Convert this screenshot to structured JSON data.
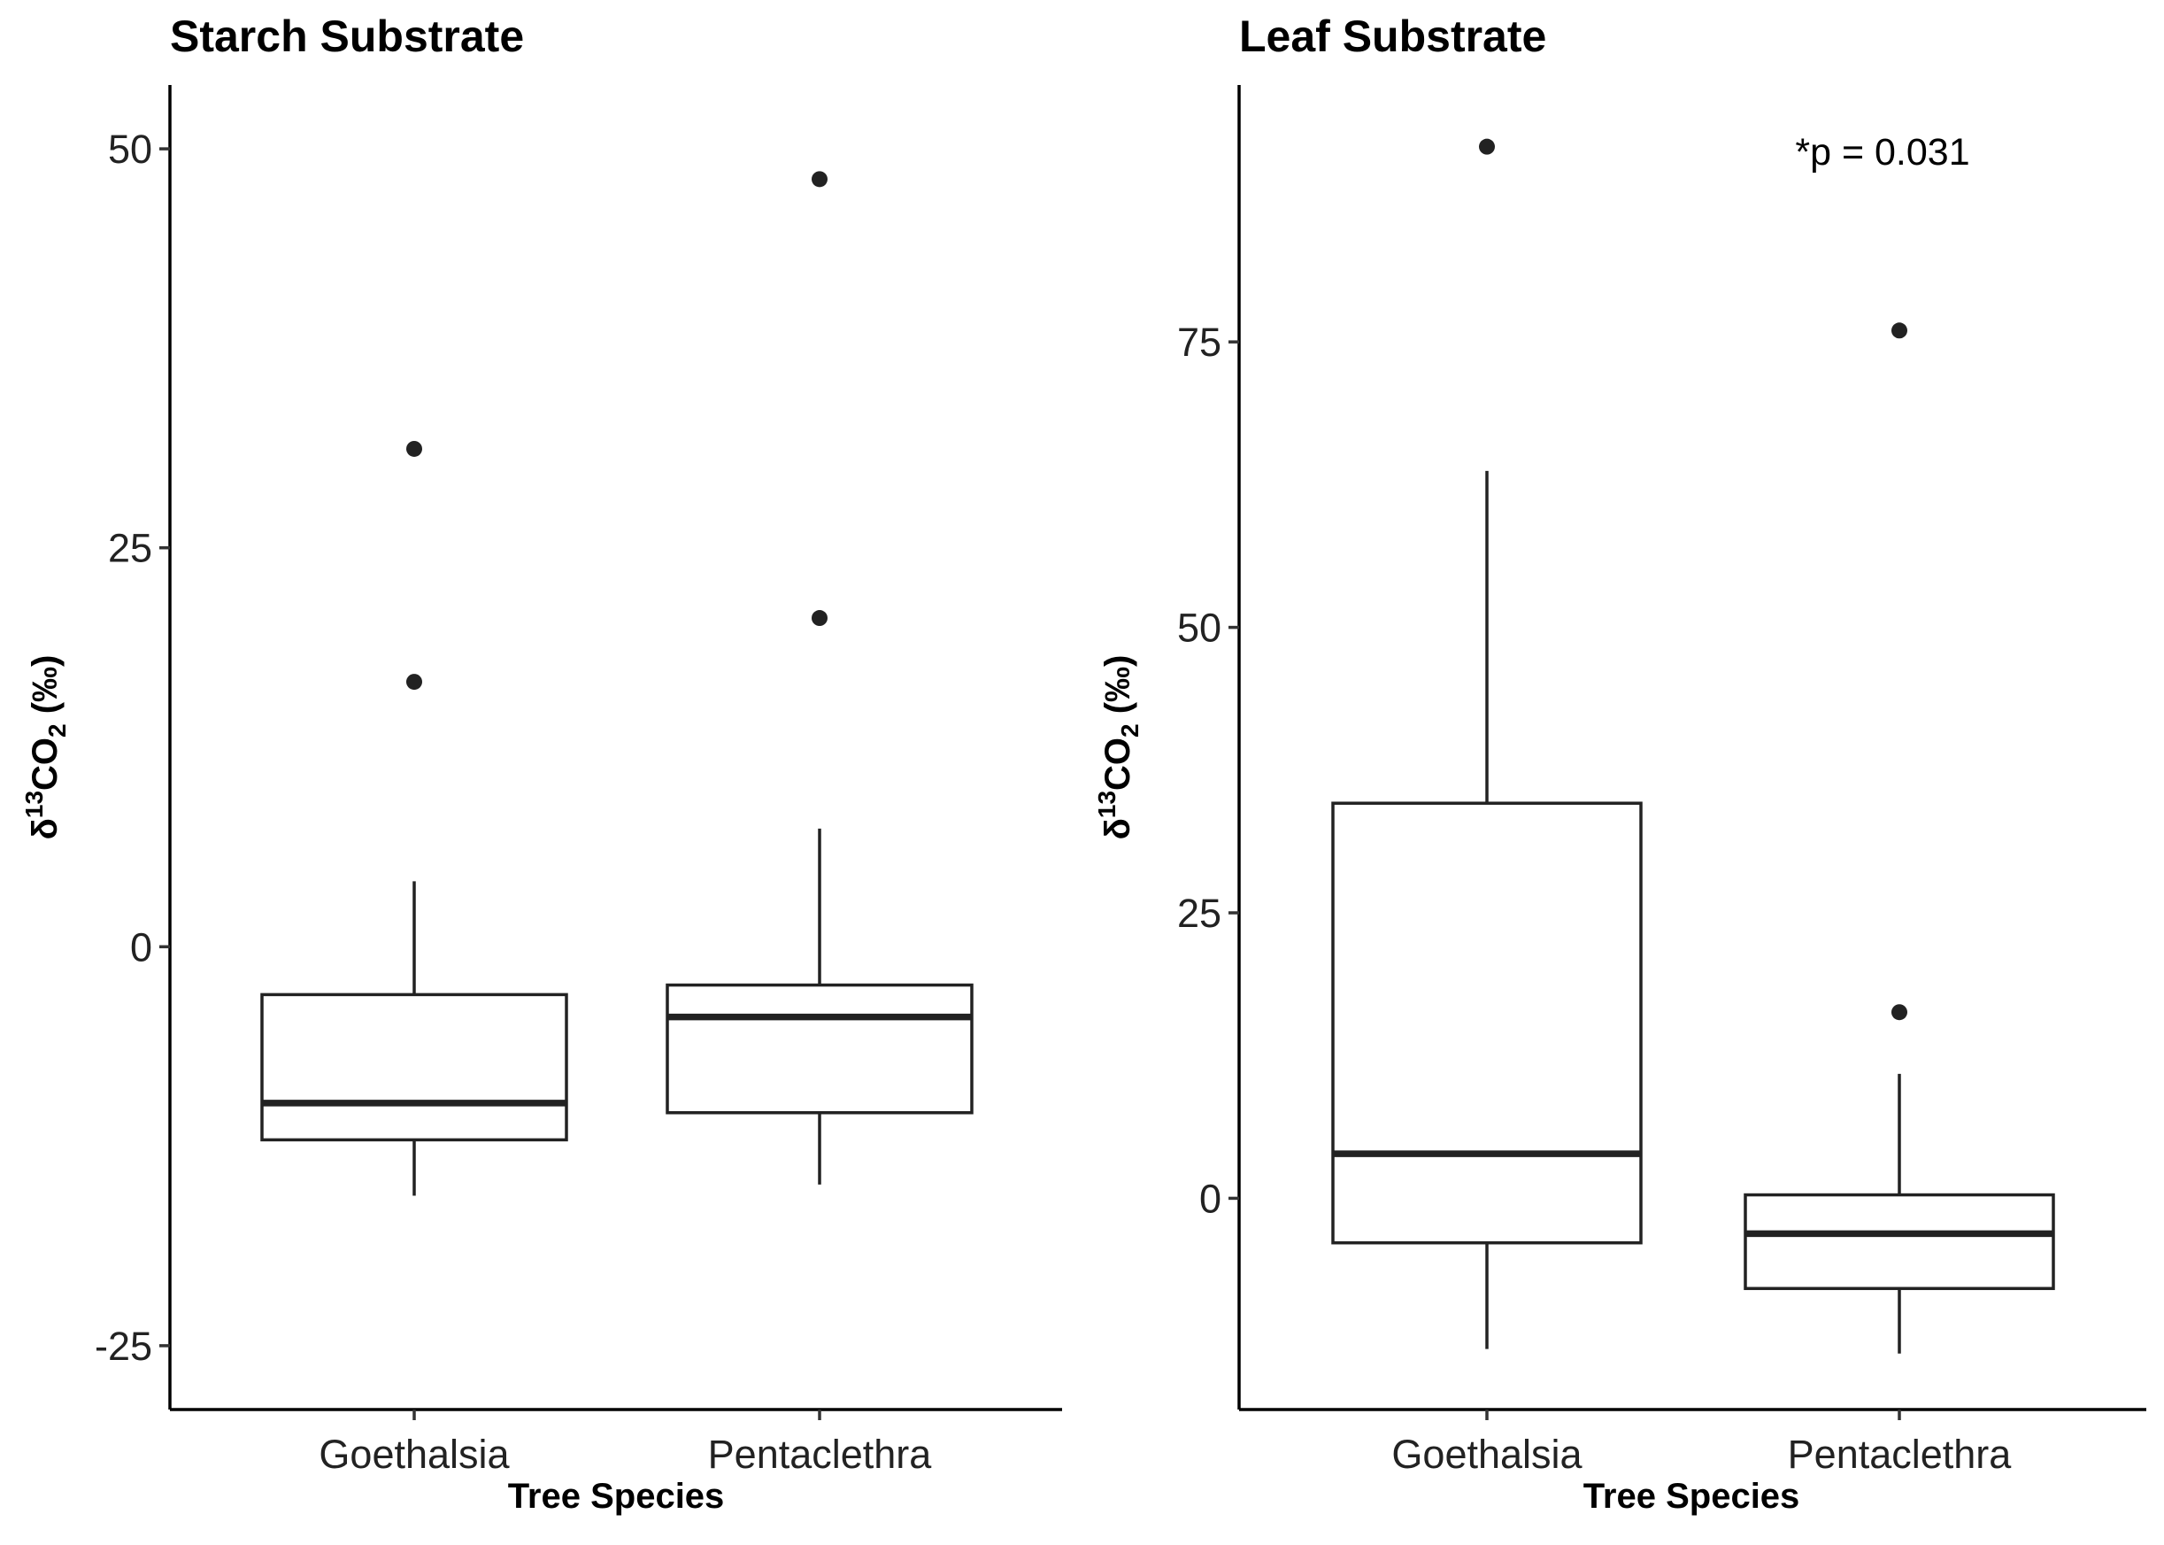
{
  "chart_data": [
    {
      "type": "box",
      "title": "Starch Substrate",
      "xlabel": "Tree Species",
      "ylabel_parts": [
        "δ",
        "13",
        "CO",
        "2",
        " (‰)"
      ],
      "ylim": [
        -29,
        54
      ],
      "yticks": [
        50,
        25,
        0,
        -25
      ],
      "categories": [
        "Goethalsia",
        "Pentaclethra"
      ],
      "boxes": [
        {
          "category": "Goethalsia",
          "whisker_low": -15.6,
          "q1": -12.1,
          "median": -9.8,
          "q3": -3.0,
          "whisker_high": 4.1,
          "outliers": [
            31.2,
            16.6
          ]
        },
        {
          "category": "Pentaclethra",
          "whisker_low": -14.9,
          "q1": -10.4,
          "median": -4.4,
          "q3": -2.4,
          "whisker_high": 7.4,
          "outliers": [
            48.1,
            20.6
          ]
        }
      ],
      "annotation": ""
    },
    {
      "type": "box",
      "title": "Leaf Substrate",
      "xlabel": "Tree Species",
      "ylabel_parts": [
        "δ",
        "13",
        "CO",
        "2",
        " (‰)"
      ],
      "ylim": [
        -18.5,
        97.5
      ],
      "yticks": [
        75,
        50,
        25,
        0
      ],
      "categories": [
        "Goethalsia",
        "Pentaclethra"
      ],
      "boxes": [
        {
          "category": "Goethalsia",
          "whisker_low": -13.2,
          "q1": -3.9,
          "median": 3.9,
          "q3": 34.6,
          "whisker_high": 63.7,
          "outliers": [
            92.1
          ]
        },
        {
          "category": "Pentaclethra",
          "whisker_low": -13.6,
          "q1": -7.9,
          "median": -3.1,
          "q3": 0.3,
          "whisker_high": 10.9,
          "outliers": [
            76.0,
            16.3
          ]
        }
      ],
      "annotation": "*p = 0.031"
    }
  ]
}
